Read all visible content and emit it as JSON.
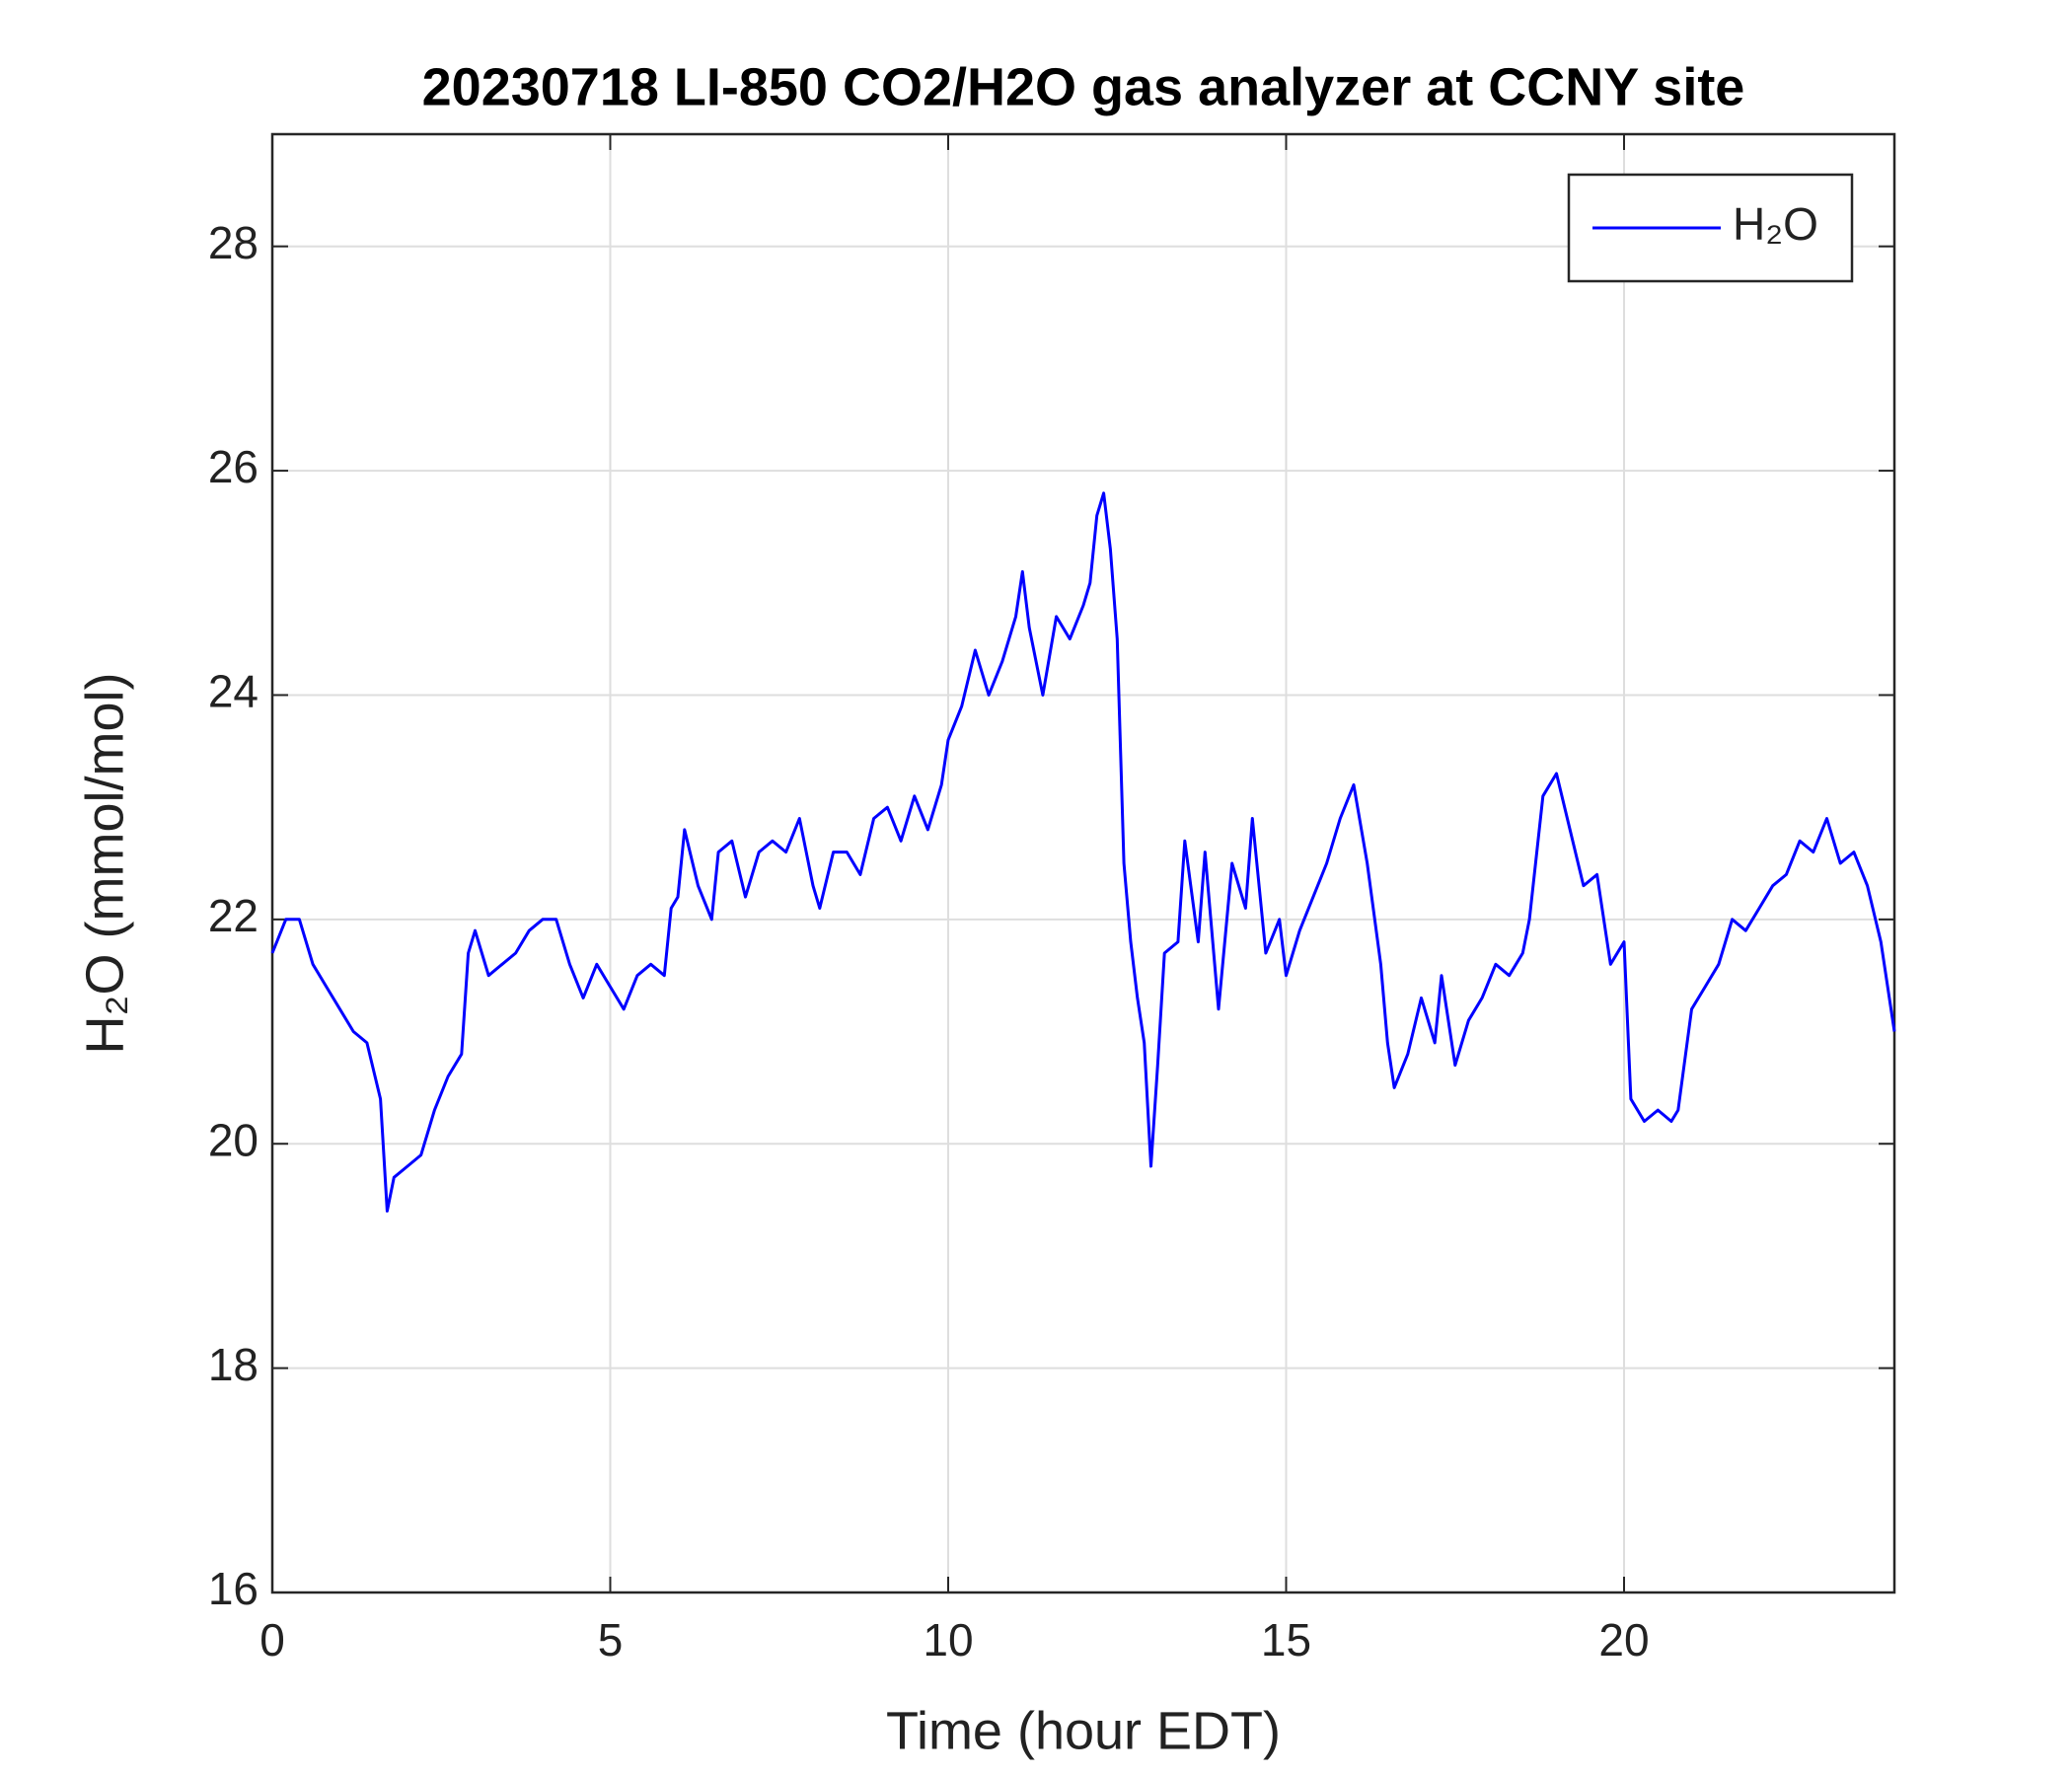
{
  "chart_data": {
    "type": "line",
    "title": "20230718 LI-850 CO2/H2O gas analyzer at CCNY site",
    "xlabel": "Time (hour EDT)",
    "ylabel": "H₂O (mmol/mol)",
    "xlim": [
      0,
      24
    ],
    "xticks": [
      0,
      5,
      10,
      15,
      20
    ],
    "ylim": [
      16,
      29
    ],
    "yticks": [
      16,
      18,
      20,
      22,
      24,
      26,
      28
    ],
    "grid": true,
    "legend": "upper right",
    "x": [
      0,
      0.2,
      0.4,
      0.6,
      0.8,
      1.0,
      1.2,
      1.4,
      1.6,
      1.7,
      1.8,
      2.0,
      2.2,
      2.4,
      2.6,
      2.8,
      2.9,
      3.0,
      3.2,
      3.4,
      3.6,
      3.8,
      4.0,
      4.2,
      4.4,
      4.6,
      4.8,
      5.0,
      5.2,
      5.4,
      5.6,
      5.8,
      5.9,
      6.0,
      6.1,
      6.3,
      6.5,
      6.6,
      6.8,
      7.0,
      7.2,
      7.4,
      7.6,
      7.8,
      8.0,
      8.1,
      8.3,
      8.5,
      8.7,
      8.9,
      9.1,
      9.3,
      9.5,
      9.7,
      9.9,
      10.0,
      10.2,
      10.4,
      10.6,
      10.8,
      11.0,
      11.1,
      11.2,
      11.4,
      11.6,
      11.8,
      12.0,
      12.1,
      12.2,
      12.3,
      12.4,
      12.5,
      12.6,
      12.7,
      12.8,
      12.9,
      13.0,
      13.1,
      13.2,
      13.4,
      13.5,
      13.7,
      13.8,
      14.0,
      14.2,
      14.4,
      14.5,
      14.7,
      14.9,
      15.0,
      15.2,
      15.4,
      15.6,
      15.8,
      16.0,
      16.2,
      16.4,
      16.5,
      16.6,
      16.8,
      17.0,
      17.2,
      17.3,
      17.5,
      17.7,
      17.9,
      18.1,
      18.3,
      18.5,
      18.6,
      18.8,
      19.0,
      19.2,
      19.4,
      19.6,
      19.8,
      20.0,
      20.1,
      20.3,
      20.5,
      20.7,
      20.8,
      21.0,
      21.2,
      21.4,
      21.6,
      21.8,
      22.0,
      22.2,
      22.4,
      22.6,
      22.8,
      23.0,
      23.2,
      23.4,
      23.6,
      23.8,
      24.0
    ],
    "series": [
      {
        "name": "H₂O",
        "color": "#0000ff",
        "values": [
          21.7,
          22.0,
          22.0,
          21.6,
          21.4,
          21.2,
          21.0,
          20.9,
          20.4,
          19.4,
          19.7,
          19.8,
          19.9,
          20.3,
          20.6,
          20.8,
          21.7,
          21.9,
          21.5,
          21.6,
          21.7,
          21.9,
          22.0,
          22.0,
          21.6,
          21.3,
          21.6,
          21.4,
          21.2,
          21.5,
          21.6,
          21.5,
          22.1,
          22.2,
          22.8,
          22.3,
          22.0,
          22.6,
          22.7,
          22.2,
          22.6,
          22.7,
          22.6,
          22.9,
          22.3,
          22.1,
          22.6,
          22.6,
          22.4,
          22.9,
          23.0,
          22.7,
          23.1,
          22.8,
          23.2,
          23.6,
          23.9,
          24.4,
          24.0,
          24.3,
          24.7,
          25.1,
          24.6,
          24.0,
          24.7,
          24.5,
          24.8,
          25.0,
          25.6,
          25.8,
          25.3,
          24.5,
          22.5,
          21.8,
          21.3,
          20.9,
          19.8,
          20.7,
          21.7,
          21.8,
          22.7,
          21.8,
          22.6,
          21.2,
          22.5,
          22.1,
          22.9,
          21.7,
          22.0,
          21.5,
          21.9,
          22.2,
          22.5,
          22.9,
          23.2,
          22.5,
          21.6,
          20.9,
          20.5,
          20.8,
          21.3,
          20.9,
          21.5,
          20.7,
          21.1,
          21.3,
          21.6,
          21.5,
          21.7,
          22.0,
          23.1,
          23.3,
          22.8,
          22.3,
          22.4,
          21.6,
          21.8,
          20.4,
          20.2,
          20.3,
          20.2,
          20.3,
          21.2,
          21.4,
          21.6,
          22.0,
          21.9,
          22.1,
          22.3,
          22.4,
          22.7,
          22.6,
          22.9,
          22.5,
          22.6,
          22.3,
          21.8,
          21.0
        ]
      }
    ]
  }
}
